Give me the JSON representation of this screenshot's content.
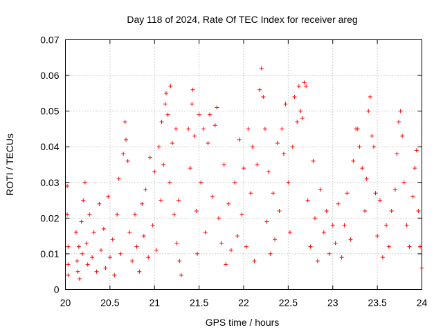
{
  "chart_data": {
    "type": "scatter",
    "title": "Day 118 of 2024, Rate Of TEC Index for receiver areg",
    "xlabel": "GPS time / hours",
    "ylabel": "ROTI / TECUs",
    "xlim": [
      20,
      24
    ],
    "ylim": [
      0,
      0.07
    ],
    "x_ticks": [
      "20",
      "20.5",
      "21",
      "21.5",
      "22",
      "22.5",
      "23",
      "23.5",
      "24"
    ],
    "y_ticks": [
      "0",
      "0.01",
      "0.02",
      "0.03",
      "0.04",
      "0.05",
      "0.06",
      "0.07"
    ],
    "grid": true,
    "marker": "plus",
    "series": [
      {
        "name": "ROTI",
        "color": "#ff0000",
        "points": [
          [
            20.02,
            0.029
          ],
          [
            20.02,
            0.021
          ],
          [
            20.03,
            0.012
          ],
          [
            20.03,
            0.007
          ],
          [
            20.03,
            0.004
          ],
          [
            20.12,
            0.016
          ],
          [
            20.13,
            0.008
          ],
          [
            20.14,
            0.005
          ],
          [
            20.15,
            0.012
          ],
          [
            20.16,
            0.003
          ],
          [
            20.18,
            0.019
          ],
          [
            20.19,
            0.01
          ],
          [
            20.2,
            0.025
          ],
          [
            20.22,
            0.03
          ],
          [
            20.24,
            0.013
          ],
          [
            20.25,
            0.007
          ],
          [
            20.27,
            0.021
          ],
          [
            20.3,
            0.009
          ],
          [
            20.32,
            0.016
          ],
          [
            20.35,
            0.005
          ],
          [
            20.38,
            0.024
          ],
          [
            20.4,
            0.011
          ],
          [
            20.43,
            0.017
          ],
          [
            20.45,
            0.006
          ],
          [
            20.48,
            0.026
          ],
          [
            20.5,
            0.009
          ],
          [
            20.53,
            0.014
          ],
          [
            20.55,
            0.004
          ],
          [
            20.58,
            0.021
          ],
          [
            20.6,
            0.031
          ],
          [
            20.62,
            0.01
          ],
          [
            20.65,
            0.038
          ],
          [
            20.67,
            0.047
          ],
          [
            20.68,
            0.042
          ],
          [
            20.7,
            0.036
          ],
          [
            20.72,
            0.016
          ],
          [
            20.75,
            0.008
          ],
          [
            20.78,
            0.021
          ],
          [
            20.8,
            0.012
          ],
          [
            20.83,
            0.005
          ],
          [
            20.86,
            0.024
          ],
          [
            20.88,
            0.015
          ],
          [
            20.9,
            0.028
          ],
          [
            20.93,
            0.009
          ],
          [
            20.95,
            0.037
          ],
          [
            20.98,
            0.018
          ],
          [
            21.0,
            0.033
          ],
          [
            21.02,
            0.011
          ],
          [
            21.05,
            0.04
          ],
          [
            21.07,
            0.025
          ],
          [
            21.08,
            0.047
          ],
          [
            21.1,
            0.035
          ],
          [
            21.12,
            0.052
          ],
          [
            21.13,
            0.055
          ],
          [
            21.15,
            0.049
          ],
          [
            21.17,
            0.03
          ],
          [
            21.18,
            0.057
          ],
          [
            21.2,
            0.041
          ],
          [
            21.22,
            0.021
          ],
          [
            21.24,
            0.045
          ],
          [
            21.25,
            0.013
          ],
          [
            21.27,
            0.025
          ],
          [
            21.28,
            0.008
          ],
          [
            21.3,
            0.004
          ],
          [
            21.38,
            0.045
          ],
          [
            21.4,
            0.034
          ],
          [
            21.42,
            0.052
          ],
          [
            21.43,
            0.056
          ],
          [
            21.45,
            0.043
          ],
          [
            21.47,
            0.022
          ],
          [
            21.48,
            0.01
          ],
          [
            21.5,
            0.049
          ],
          [
            21.52,
            0.03
          ],
          [
            21.55,
            0.045
          ],
          [
            21.57,
            0.016
          ],
          [
            21.6,
            0.041
          ],
          [
            21.62,
            0.049
          ],
          [
            21.65,
            0.026
          ],
          [
            21.68,
            0.046
          ],
          [
            21.7,
            0.051
          ],
          [
            21.72,
            0.02
          ],
          [
            21.75,
            0.013
          ],
          [
            21.78,
            0.035
          ],
          [
            21.8,
            0.007
          ],
          [
            21.83,
            0.024
          ],
          [
            21.86,
            0.011
          ],
          [
            21.9,
            0.03
          ],
          [
            21.93,
            0.015
          ],
          [
            21.95,
            0.042
          ],
          [
            21.98,
            0.021
          ],
          [
            22.0,
            0.034
          ],
          [
            22.03,
            0.012
          ],
          [
            22.05,
            0.045
          ],
          [
            22.08,
            0.027
          ],
          [
            22.1,
            0.04
          ],
          [
            22.12,
            0.008
          ],
          [
            22.15,
            0.035
          ],
          [
            22.18,
            0.056
          ],
          [
            22.2,
            0.062
          ],
          [
            22.22,
            0.054
          ],
          [
            22.24,
            0.045
          ],
          [
            22.26,
            0.019
          ],
          [
            22.28,
            0.033
          ],
          [
            22.3,
            0.01
          ],
          [
            22.33,
            0.027
          ],
          [
            22.35,
            0.014
          ],
          [
            22.38,
            0.041
          ],
          [
            22.4,
            0.022
          ],
          [
            22.43,
            0.045
          ],
          [
            22.45,
            0.038
          ],
          [
            22.47,
            0.052
          ],
          [
            22.5,
            0.03
          ],
          [
            22.52,
            0.016
          ],
          [
            22.55,
            0.04
          ],
          [
            22.57,
            0.054
          ],
          [
            22.6,
            0.047
          ],
          [
            22.62,
            0.057
          ],
          [
            22.64,
            0.05
          ],
          [
            22.66,
            0.048
          ],
          [
            22.68,
            0.058
          ],
          [
            22.7,
            0.057
          ],
          [
            22.72,
            0.025
          ],
          [
            22.75,
            0.012
          ],
          [
            22.78,
            0.036
          ],
          [
            22.8,
            0.02
          ],
          [
            22.83,
            0.008
          ],
          [
            22.86,
            0.028
          ],
          [
            22.9,
            0.016
          ],
          [
            22.93,
            0.022
          ],
          [
            22.96,
            0.01
          ],
          [
            23.0,
            0.018
          ],
          [
            23.03,
            0.013
          ],
          [
            23.06,
            0.024
          ],
          [
            23.1,
            0.009
          ],
          [
            23.13,
            0.018
          ],
          [
            23.16,
            0.027
          ],
          [
            23.2,
            0.014
          ],
          [
            23.23,
            0.036
          ],
          [
            23.26,
            0.045
          ],
          [
            23.28,
            0.045
          ],
          [
            23.3,
            0.04
          ],
          [
            23.33,
            0.034
          ],
          [
            23.36,
            0.022
          ],
          [
            23.38,
            0.031
          ],
          [
            23.4,
            0.05
          ],
          [
            23.42,
            0.054
          ],
          [
            23.44,
            0.043
          ],
          [
            23.46,
            0.04
          ],
          [
            23.48,
            0.027
          ],
          [
            23.5,
            0.015
          ],
          [
            23.53,
            0.025
          ],
          [
            23.56,
            0.009
          ],
          [
            23.6,
            0.018
          ],
          [
            23.63,
            0.012
          ],
          [
            23.66,
            0.022
          ],
          [
            23.7,
            0.028
          ],
          [
            23.72,
            0.038
          ],
          [
            23.74,
            0.047
          ],
          [
            23.76,
            0.05
          ],
          [
            23.78,
            0.043
          ],
          [
            23.8,
            0.03
          ],
          [
            23.83,
            0.018
          ],
          [
            23.86,
            0.012
          ],
          [
            23.9,
            0.026
          ],
          [
            23.92,
            0.034
          ],
          [
            23.94,
            0.039
          ],
          [
            23.96,
            0.022
          ],
          [
            23.98,
            0.012
          ],
          [
            24.0,
            0.006
          ]
        ]
      }
    ]
  }
}
